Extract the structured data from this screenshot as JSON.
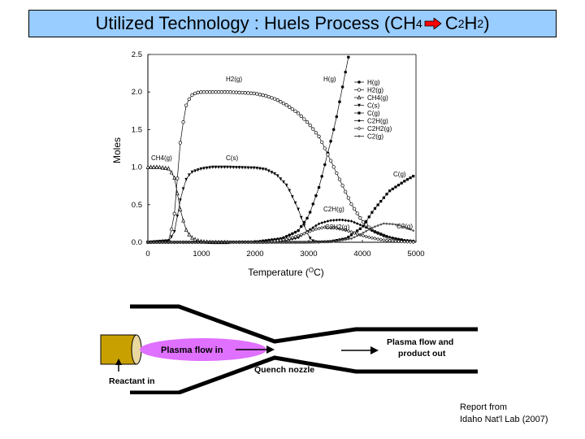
{
  "title": {
    "prefix": "Utilized Technology : Huels Process (CH",
    "sub1": "4",
    "mid": " C",
    "sub2": "2",
    "mid2": "H",
    "sub3": "2",
    "suffix": ")",
    "arrow_color": "#ff0000"
  },
  "chart_data": {
    "type": "line",
    "xlabel": "Temperature (",
    "xlabel_sup": "O",
    "xlabel_end": "C)",
    "ylabel": "Moles",
    "xlim": [
      0,
      5000
    ],
    "ylim": [
      0,
      2.5
    ],
    "x_ticks": [
      "0",
      "1000",
      "2000",
      "3000",
      "4000",
      "5000"
    ],
    "y_ticks": [
      "0.0",
      "0.5",
      "1.0",
      "1.5",
      "2.0",
      "2.5"
    ],
    "legend_position": "top-right",
    "legend": [
      "H(g)",
      "H2(g)",
      "CH4(g)",
      "C(s)",
      "C(g)",
      "C2H(g)",
      "C2H2(g)",
      "C2(g)"
    ],
    "annotations": [
      "H2(g)",
      "H(g)",
      "CH4(g)",
      "C(s)",
      "C2H(g)",
      "C2H2(g)",
      "C2(g)",
      "C(g)"
    ],
    "series": [
      {
        "name": "H(g)",
        "x": [
          0,
          2000,
          2500,
          2800,
          3000,
          3200,
          3500,
          3750
        ],
        "y": [
          0,
          0.005,
          0.05,
          0.15,
          0.35,
          0.75,
          1.6,
          2.5
        ]
      },
      {
        "name": "H2(g)",
        "x": [
          0,
          400,
          500,
          600,
          700,
          800,
          900,
          1000,
          1200,
          1500,
          1800,
          2000,
          2200,
          2400,
          2600,
          2800,
          3000,
          3200,
          3400,
          3600,
          3800,
          4000,
          4200,
          4500,
          4800,
          5000
        ],
        "y": [
          0,
          0.02,
          0.4,
          1.3,
          1.8,
          1.95,
          1.99,
          2.0,
          2.0,
          2.0,
          1.99,
          1.98,
          1.95,
          1.9,
          1.82,
          1.72,
          1.58,
          1.4,
          1.1,
          0.8,
          0.5,
          0.28,
          0.15,
          0.06,
          0.02,
          0.01
        ]
      },
      {
        "name": "CH4(g)",
        "x": [
          0,
          200,
          400,
          500,
          600,
          700,
          800,
          900,
          1000,
          1200,
          1500
        ],
        "y": [
          1.0,
          1.0,
          0.98,
          0.85,
          0.45,
          0.18,
          0.07,
          0.03,
          0.01,
          0.0,
          0.0
        ]
      },
      {
        "name": "C(s)",
        "x": [
          0,
          400,
          500,
          600,
          700,
          800,
          1000,
          1200,
          1500,
          2000,
          2200,
          2400,
          2600,
          2800,
          2900,
          3000,
          3050,
          3100,
          3200
        ],
        "y": [
          0,
          0.02,
          0.15,
          0.55,
          0.82,
          0.93,
          0.98,
          1.0,
          1.0,
          0.99,
          0.97,
          0.9,
          0.75,
          0.45,
          0.25,
          0.08,
          0.03,
          0.01,
          0.0
        ]
      },
      {
        "name": "C(g)",
        "x": [
          0,
          3000,
          3400,
          3700,
          4000,
          4200,
          4500,
          4800,
          5000
        ],
        "y": [
          0,
          0.0,
          0.01,
          0.05,
          0.2,
          0.42,
          0.68,
          0.82,
          0.9
        ]
      },
      {
        "name": "C2H(g)",
        "x": [
          0,
          2400,
          2800,
          3000,
          3200,
          3400,
          3600,
          3800,
          4000,
          4200,
          4400,
          4600,
          4800,
          5000
        ],
        "y": [
          0,
          0.0,
          0.06,
          0.16,
          0.25,
          0.29,
          0.3,
          0.28,
          0.22,
          0.15,
          0.09,
          0.05,
          0.02,
          0.01
        ]
      },
      {
        "name": "C2H2(g)",
        "x": [
          0,
          2200,
          2600,
          2900,
          3100,
          3300,
          3500,
          3700,
          3900,
          4100,
          4300,
          4500,
          4700,
          5000
        ],
        "y": [
          0,
          0.0,
          0.04,
          0.11,
          0.17,
          0.2,
          0.19,
          0.16,
          0.11,
          0.07,
          0.04,
          0.02,
          0.01,
          0.0
        ]
      },
      {
        "name": "C2(g)",
        "x": [
          0,
          3400,
          3800,
          4000,
          4200,
          4400,
          4600,
          4800,
          5000
        ],
        "y": [
          0,
          0.0,
          0.05,
          0.12,
          0.2,
          0.25,
          0.24,
          0.2,
          0.14
        ]
      }
    ]
  },
  "diagram": {
    "plasma_label": "Plasma flow in",
    "reactant_label": "Reactant in",
    "quench_label": "Quench nozzle",
    "out_label_1": "Plasma flow and",
    "out_label_2": "product out",
    "plasma_color": "#e070ff",
    "torch_color": "#c8a000"
  },
  "report": {
    "line1": "Report from",
    "line2": "Idaho Nat'l Lab (2007)"
  }
}
